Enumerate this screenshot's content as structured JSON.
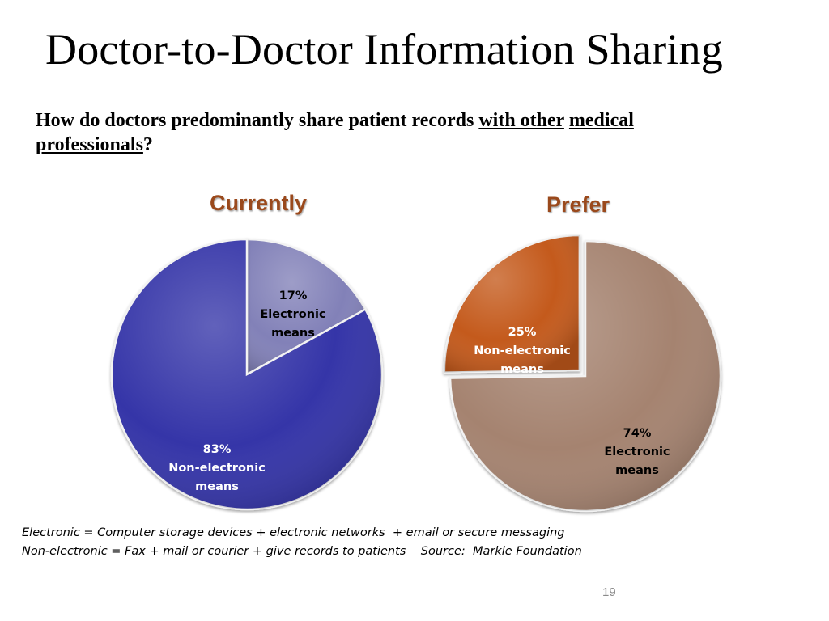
{
  "slide": {
    "title": "Doctor-to-Doctor Information Sharing",
    "question_prefix": "How do doctors predominantly share patient records ",
    "question_underlined_1": "with other",
    "question_space": " ",
    "question_underlined_2": "medical professionals",
    "question_suffix": "?",
    "footnote_1": "Electronic = Computer storage devices + electronic networks  + email or secure messaging",
    "footnote_2": "Non-electronic = Fax + mail or courier + give records to patients    Source:  Markle Foundation",
    "page_number": "19"
  },
  "chart_data": [
    {
      "type": "pie",
      "title": "Currently",
      "title_color": "#9a4a1c",
      "slices": [
        {
          "label_lines": [
            "17%",
            "Electronic",
            "means"
          ],
          "value": 17,
          "color": "#8281b8",
          "label_color": "#000000"
        },
        {
          "label_lines": [
            "83%",
            "Non-electronic",
            "means"
          ],
          "value": 83,
          "color": "#3535a8",
          "label_color": "#ffffff"
        }
      ]
    },
    {
      "type": "pie",
      "title": "Prefer",
      "title_color": "#9a4a1c",
      "slices": [
        {
          "label_lines": [
            "74%",
            "Electronic",
            "means"
          ],
          "value": 74,
          "color": "#a5836f",
          "label_color": "#000000"
        },
        {
          "label_lines": [
            "25%",
            "Non-electronic",
            "means"
          ],
          "value": 25,
          "color": "#c45a1e",
          "label_color": "#ffffff"
        }
      ]
    }
  ]
}
